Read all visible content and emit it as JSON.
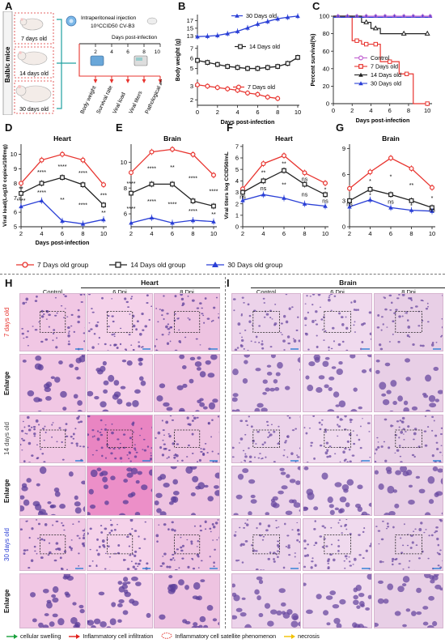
{
  "panels": {
    "A": {
      "label": "A",
      "side_label": "Balb/c mice",
      "mice": [
        "7 days old",
        "14 days old",
        "30 days old"
      ],
      "injection_line1": "Intraperitoneal injection",
      "injection_line2": "10⁶CCID50 CV-B3",
      "timeline_title": "Days post-infection",
      "timeline_ticks": [
        "0",
        "2",
        "4",
        "6",
        "8",
        "10"
      ],
      "outcomes": [
        "Body weight",
        "Survival rate",
        "Viral load",
        "Viral titers",
        "Pathological analysis"
      ]
    },
    "B": "B",
    "C": "C",
    "D": "D",
    "E": "E",
    "F": "F",
    "G": "G",
    "H": "H",
    "I": "I"
  },
  "group_legend": [
    "7  Days old group",
    "14 Days old group",
    "30 Days old group"
  ],
  "colors": {
    "g7": "#e8342f",
    "g14": "#222222",
    "g30": "#2a3fd6",
    "control": "#c060d0"
  },
  "chart_data": [
    {
      "id": "B",
      "type": "line",
      "xlabel": "Days post-infection",
      "ylabel": "Body weight (g)",
      "x": [
        0,
        1,
        2,
        3,
        4,
        5,
        6,
        7,
        8,
        9,
        10
      ],
      "series": [
        {
          "name": "30 Days old",
          "values": [
            12.8,
            12.9,
            13.1,
            13.6,
            14.2,
            15.1,
            16.1,
            16.8,
            17.5,
            17.9,
            18.2
          ]
        },
        {
          "name": "14 Days old",
          "values": [
            5.8,
            5.6,
            5.4,
            5.2,
            5.1,
            5.0,
            5.0,
            5.1,
            5.2,
            5.5,
            6.1
          ]
        },
        {
          "name": "7  Days old",
          "values": [
            3.1,
            3.0,
            2.9,
            2.8,
            2.7,
            2.5,
            2.4,
            2.2,
            2.1,
            null,
            null
          ]
        }
      ],
      "yticks_top": [
        "13",
        "15",
        "17"
      ],
      "yticks_mid": [
        "5",
        "6",
        "7"
      ],
      "yticks_bot": [
        "2",
        "3"
      ],
      "xticks": [
        "0",
        "2",
        "4",
        "6",
        "8",
        "10"
      ]
    },
    {
      "id": "C",
      "type": "line",
      "xlabel": "Days post-infection",
      "ylabel": "Percent survival(%)",
      "ylim": [
        0,
        100
      ],
      "yticks": [
        "0",
        "20",
        "40",
        "60",
        "80",
        "100"
      ],
      "xticks": [
        "0",
        "2",
        "4",
        "6",
        "8",
        "10"
      ],
      "series": [
        {
          "name": "Control",
          "steps": [
            [
              0,
              100
            ],
            [
              10.5,
              100
            ]
          ]
        },
        {
          "name": "7 Days old",
          "steps": [
            [
              0,
              100
            ],
            [
              2,
              100
            ],
            [
              2,
              72
            ],
            [
              3,
              72
            ],
            [
              3,
              68
            ],
            [
              5,
              68
            ],
            [
              5,
              48
            ],
            [
              7,
              48
            ],
            [
              7,
              34
            ],
            [
              8.5,
              34
            ],
            [
              8.5,
              0
            ],
            [
              10,
              0
            ]
          ]
        },
        {
          "name": "14 Days old",
          "steps": [
            [
              0,
              100
            ],
            [
              3,
              100
            ],
            [
              3,
              93
            ],
            [
              4,
              93
            ],
            [
              4,
              86
            ],
            [
              5,
              86
            ],
            [
              5,
              80
            ],
            [
              10,
              80
            ]
          ]
        },
        {
          "name": "30 Days old",
          "steps": [
            [
              0,
              100
            ],
            [
              10.5,
              100
            ]
          ]
        }
      ],
      "legend": [
        "Control",
        "7 Days old",
        "14 Days old",
        "30 Days old"
      ]
    },
    {
      "id": "D",
      "type": "line",
      "title": "Heart",
      "xlabel": "Days post-infection",
      "ylabel": "Viral load(Log10 copies/100mg)",
      "ylim": [
        5,
        10.7
      ],
      "yticks": [
        "5",
        "6",
        "7",
        "8",
        "9",
        "10"
      ],
      "x": [
        2,
        4,
        6,
        8,
        10
      ],
      "series": [
        {
          "name": "7 Days old",
          "values": [
            8.0,
            9.6,
            10.0,
            9.6,
            7.9
          ]
        },
        {
          "name": "14 Days old",
          "values": [
            7.3,
            8.0,
            8.4,
            7.9,
            6.5
          ]
        },
        {
          "name": "30 Days old",
          "values": [
            6.4,
            6.8,
            5.4,
            5.2,
            5.5
          ]
        }
      ],
      "stars_upper": [
        "**",
        "****",
        "****",
        "****",
        "***"
      ],
      "stars_lower": [
        "****",
        "****",
        "**",
        "****",
        "**"
      ]
    },
    {
      "id": "E",
      "type": "line",
      "title": "Brain",
      "ylim": [
        5,
        11.4
      ],
      "yticks": [
        "6",
        "8",
        "10"
      ],
      "x": [
        2,
        4,
        6,
        8,
        10
      ],
      "series": [
        {
          "name": "7 Days old",
          "values": [
            9.2,
            10.8,
            11.0,
            10.6,
            9.0
          ]
        },
        {
          "name": "14 Days old",
          "values": [
            7.6,
            8.3,
            8.3,
            7.0,
            6.6
          ]
        },
        {
          "name": "30 Days old",
          "values": [
            5.3,
            5.7,
            5.3,
            5.5,
            5.4
          ]
        }
      ],
      "stars_upper": [
        "****",
        "****",
        "**",
        "****",
        "****"
      ],
      "stars_lower": [
        "****",
        "****",
        "****",
        "****",
        "**"
      ]
    },
    {
      "id": "F",
      "type": "line",
      "title": "Heart",
      "ylabel": "Viral titers log CCID50/mL",
      "ylim": [
        0,
        7.2
      ],
      "yticks": [
        "0",
        "1",
        "2",
        "3",
        "4",
        "5",
        "6",
        "7"
      ],
      "x": [
        2,
        4,
        6,
        8,
        10
      ],
      "series": [
        {
          "name": "7 Days old",
          "values": [
            3.3,
            5.5,
            6.2,
            4.7,
            3.8
          ]
        },
        {
          "name": "14 Days old",
          "values": [
            3.0,
            4.0,
            4.9,
            3.7,
            2.8
          ]
        },
        {
          "name": "30 Days old",
          "values": [
            2.3,
            2.8,
            2.5,
            2.0,
            1.8
          ]
        }
      ],
      "stars_upper": [
        "",
        "**",
        "**",
        "ns",
        "*"
      ],
      "stars_lower": [
        "ns",
        "ns",
        "**",
        "ns",
        "ns"
      ]
    },
    {
      "id": "G",
      "type": "line",
      "title": "Brain",
      "ylim": [
        0,
        9.5
      ],
      "yticks": [
        "0",
        "3",
        "6",
        "9"
      ],
      "x": [
        2,
        4,
        6,
        8,
        10
      ],
      "series": [
        {
          "name": "7 Days old",
          "values": [
            4.4,
            6.3,
            7.9,
            6.7,
            4.5
          ]
        },
        {
          "name": "14 Days old",
          "values": [
            3.0,
            4.3,
            3.7,
            3.0,
            2.2
          ]
        },
        {
          "name": "30 Days old",
          "values": [
            2.3,
            3.1,
            2.2,
            1.9,
            1.8
          ]
        }
      ],
      "stars_upper": [
        "",
        "*",
        "*",
        "**",
        "*"
      ],
      "stars_lower": [
        "ns",
        "*",
        "ns",
        "*",
        "ns"
      ]
    }
  ],
  "histology": {
    "heart_title": "Heart",
    "brain_title": "Brain",
    "columns": [
      "Control",
      "6 Dpi",
      "8 Dpi"
    ],
    "row_labels": [
      "7 days old",
      "Enlarge",
      "14 days old",
      "Enlarge",
      "30 days old",
      "Enlarge"
    ],
    "legend": [
      "cellular swelling",
      "Inflammatory cell infiltration",
      "Inflammatory cell satellite phenomenon",
      "necrosis"
    ]
  }
}
